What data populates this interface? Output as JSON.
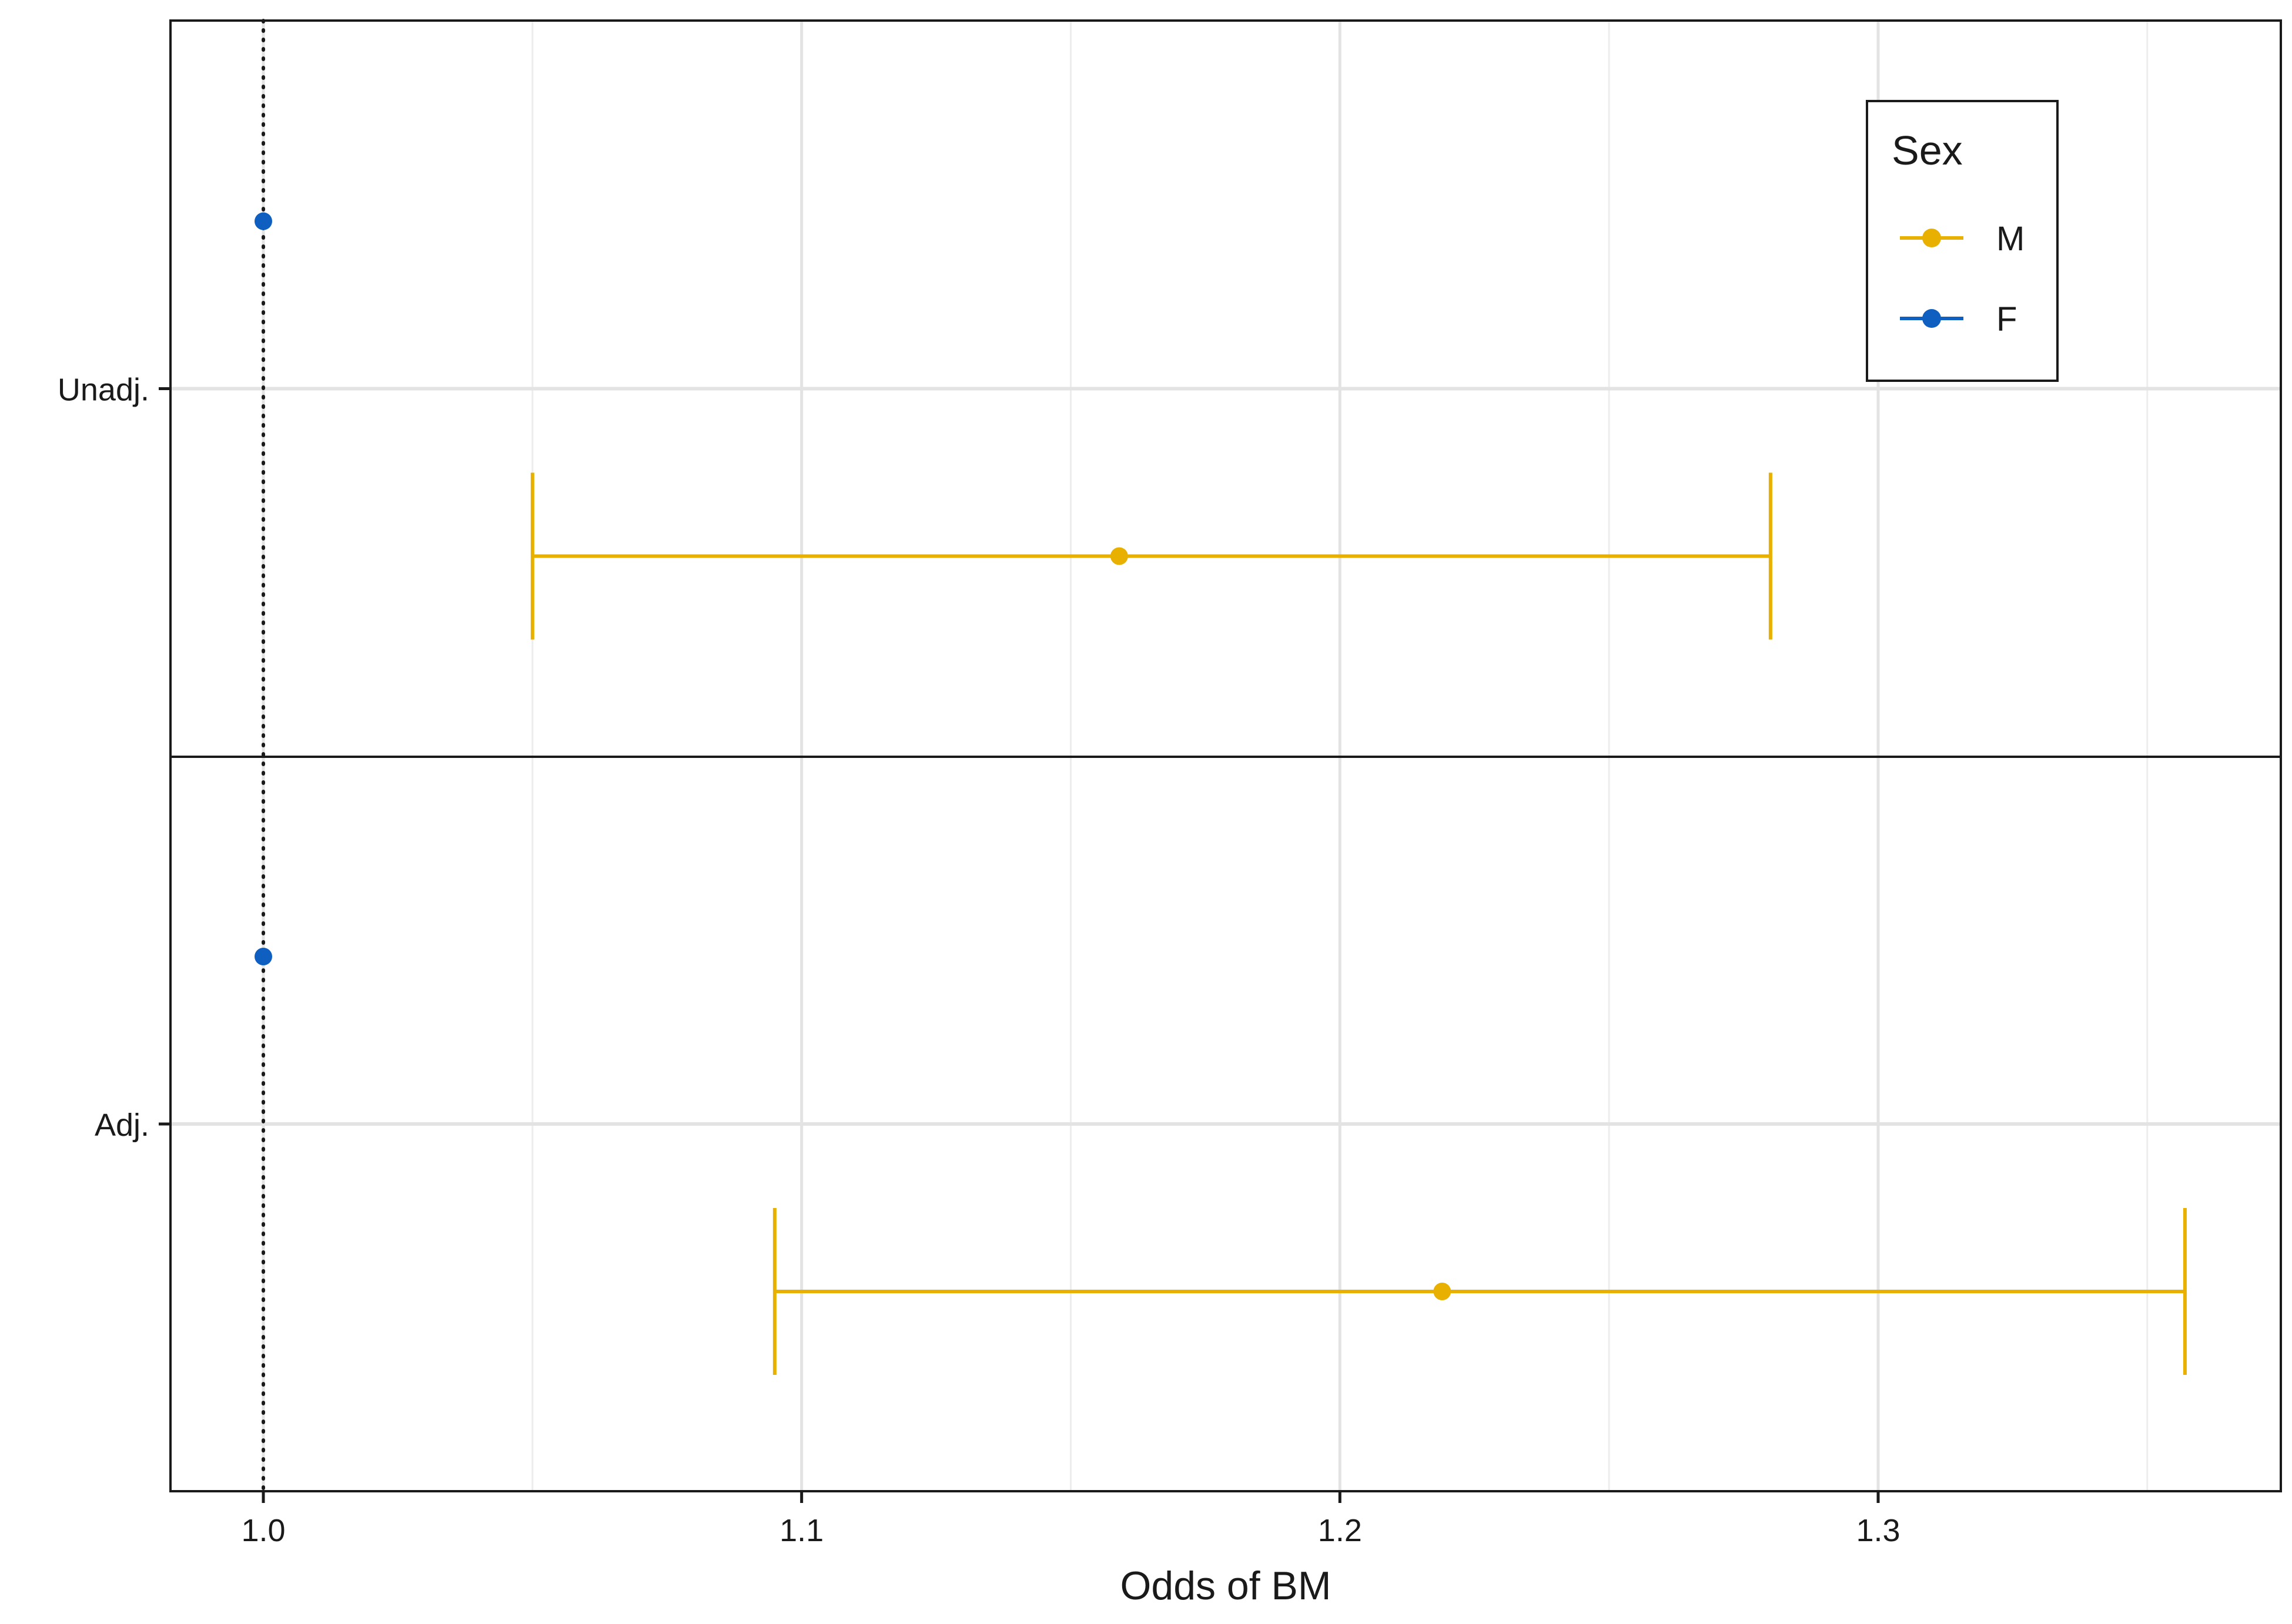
{
  "chart_data": {
    "type": "scatter",
    "xlabel": "Odds of BM",
    "ylabel": "",
    "xlim": [
      0.983,
      1.374
    ],
    "x_ticks": [
      {
        "value": 1.0,
        "label": "1.0"
      },
      {
        "value": 1.1,
        "label": "1.1"
      },
      {
        "value": 1.2,
        "label": "1.2"
      },
      {
        "value": 1.3,
        "label": "1.3"
      }
    ],
    "x_minor_grid": [
      1.05,
      1.15,
      1.25,
      1.35
    ],
    "reference_line": 1.0,
    "grid": true,
    "categories": [
      "Unadj.",
      "Adj."
    ],
    "legend": {
      "title": "Sex",
      "placement": "top-right",
      "entries": [
        {
          "label": "M",
          "color": "#E8B000"
        },
        {
          "label": "F",
          "color": "#0F5FC0"
        }
      ]
    },
    "series": [
      {
        "name": "M",
        "color": "#E8B000",
        "points": [
          {
            "category": "Unadj.",
            "estimate": 1.159,
            "lower": 1.05,
            "upper": 1.28
          },
          {
            "category": "Adj.",
            "estimate": 1.219,
            "lower": 1.095,
            "upper": 1.357
          }
        ]
      },
      {
        "name": "F",
        "color": "#0F5FC0",
        "points": [
          {
            "category": "Unadj.",
            "estimate": 1.0
          },
          {
            "category": "Adj.",
            "estimate": 1.0
          }
        ]
      }
    ]
  }
}
